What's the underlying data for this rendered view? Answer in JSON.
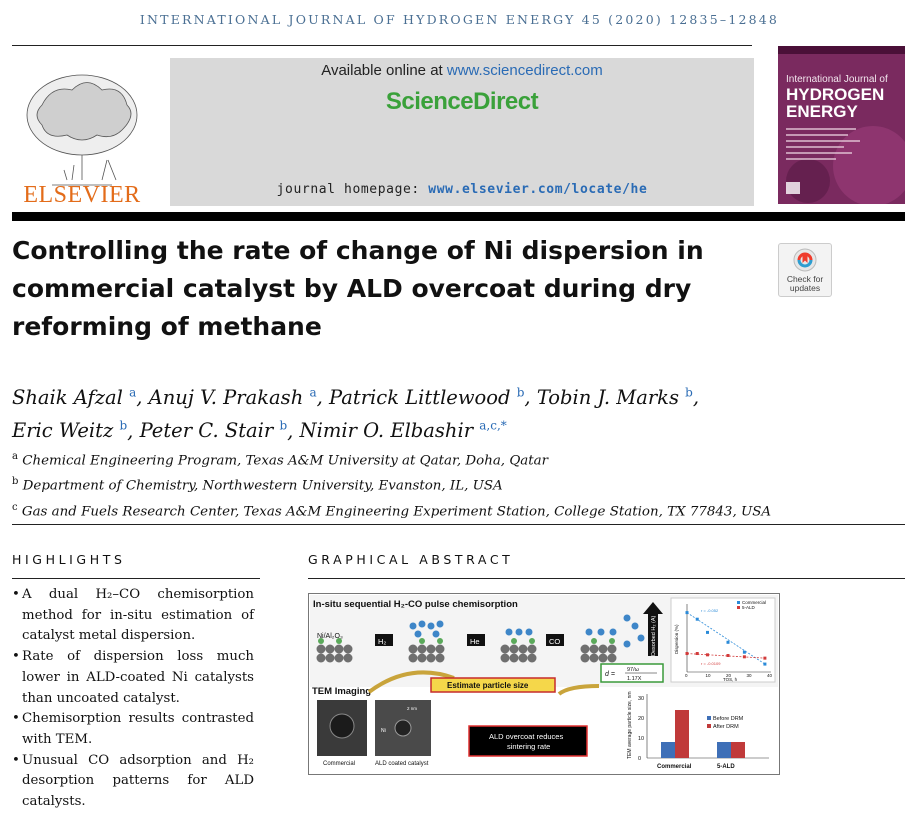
{
  "journal_line": "INTERNATIONAL JOURNAL OF HYDROGEN ENERGY 45 (2020) 12835–12848",
  "elsevier": {
    "wordmark": "ELSEVIER"
  },
  "sciencedirect": {
    "available_prefix": "Available online at ",
    "available_link": "www.sciencedirect.com",
    "logo": "ScienceDirect",
    "homepage_prefix": "journal homepage: ",
    "homepage_link": "www.elsevier.com/locate/he"
  },
  "cover": {
    "line1": "International Journal of",
    "line2": "HYDROGEN ENERGY"
  },
  "title": "Controlling the rate of change of Ni dispersion in commercial catalyst by ALD overcoat during dry reforming of methane",
  "crossmark": {
    "label": "Check for updates"
  },
  "authors": [
    {
      "name": "Shaik Afzal",
      "sup": "a"
    },
    {
      "name": "Anuj V. Prakash",
      "sup": "a"
    },
    {
      "name": "Patrick Littlewood",
      "sup": "b"
    },
    {
      "name": "Tobin J. Marks",
      "sup": "b"
    },
    {
      "name": "Eric Weitz",
      "sup": "b"
    },
    {
      "name": "Peter C. Stair",
      "sup": "b"
    },
    {
      "name": "Nimir O. Elbashir",
      "sup": "a,c,*"
    }
  ],
  "affiliations": [
    {
      "sup": "a",
      "text": "Chemical Engineering Program, Texas A&M University at Qatar, Doha, Qatar"
    },
    {
      "sup": "b",
      "text": "Department of Chemistry, Northwestern University, Evanston, IL, USA"
    },
    {
      "sup": "c",
      "text": "Gas and Fuels Research Center, Texas A&M Engineering Experiment Station, College Station, TX 77843, USA"
    }
  ],
  "highlights": {
    "heading": "HIGHLIGHTS",
    "items": [
      "A dual H₂–CO chemisorption method for in-situ estimation of catalyst metal dispersion.",
      "Rate of dispersion loss much lower in ALD-coated Ni catalysts than uncoated catalyst.",
      "Chemisorption results contrasted with TEM.",
      "Unusual CO adsorption and H₂ desorption patterns for ALD catalysts."
    ]
  },
  "graphical_abstract": {
    "heading": "GRAPHICAL ABSTRACT",
    "top_title": "In-situ sequential H₂-CO pulse chemisorption",
    "sample_label": "Ni/Al₂O₃",
    "gas_h2": "H₂",
    "gas_he": "He",
    "gas_co": "CO",
    "axis_desorbed": "Desorbed H₂ (A)",
    "tem_title": "TEM Imaging",
    "estimate_label": "Estimate particle size",
    "formula_d": "d =",
    "formula_num": "97/ω",
    "formula_den": "1.17X",
    "ald_note_1": "ALD overcoat reduces",
    "ald_note_2": "sintering rate",
    "img_commercial": "Commercial",
    "img_ald": "ALD coated catalyst",
    "img_scale_ni": "Ni",
    "img_scale_nm": "2 nm",
    "line_chart": {
      "type": "scatter",
      "xlabel": "TOS, h",
      "ylabel": "Dispersion (%)",
      "xticks": [
        "0",
        "10",
        "20",
        "30",
        "40"
      ],
      "legend": [
        "Commercial",
        "5-ALD"
      ],
      "annotations": [
        "r = -0.052",
        "r = -0.0109"
      ],
      "series": [
        {
          "name": "Commercial",
          "x": [
            0,
            5,
            10,
            20,
            28,
            38
          ],
          "y": [
            90,
            80,
            60,
            45,
            30,
            12
          ]
        },
        {
          "name": "5-ALD",
          "x": [
            0,
            5,
            10,
            20,
            28,
            38
          ],
          "y": [
            28,
            28,
            26,
            25,
            23,
            21
          ]
        }
      ],
      "colors": {
        "Commercial": "#2a8ad8",
        "5-ALD": "#d23a3a"
      }
    },
    "bar_chart": {
      "type": "bar",
      "ylabel": "TEM average particle size, nm",
      "yticks": [
        "0",
        "10",
        "20",
        "30"
      ],
      "ylim": [
        0,
        30
      ],
      "categories": [
        "Commercial",
        "5-ALD"
      ],
      "series": [
        {
          "name": "Before DRM",
          "values": [
            8,
            8
          ],
          "color": "#3e6fb7"
        },
        {
          "name": "After DRM",
          "values": [
            24,
            8
          ],
          "color": "#c03a3a"
        }
      ]
    }
  }
}
